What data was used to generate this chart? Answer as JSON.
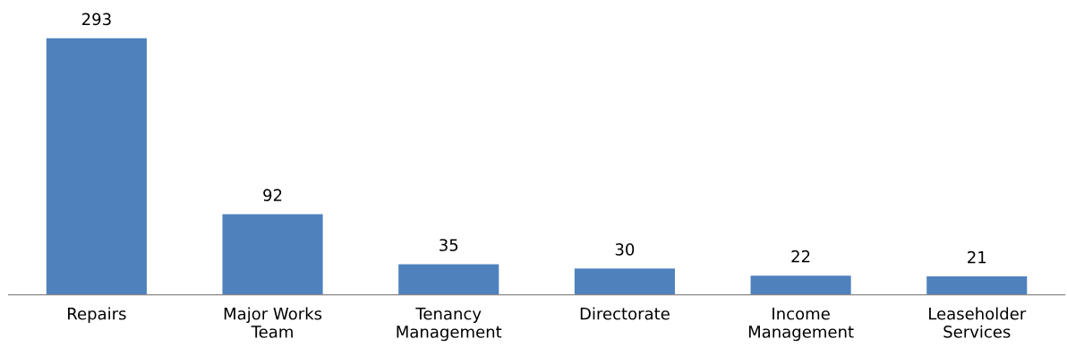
{
  "chart_data": {
    "type": "bar",
    "categories": [
      "Repairs",
      "Major Works\nTeam",
      "Tenancy\nManagement",
      "Directorate",
      "Income\nManagement",
      "Leaseholder\nServices"
    ],
    "values": [
      293,
      92,
      35,
      30,
      22,
      21
    ],
    "color": "#4f81bd",
    "data_labels": true,
    "grid": false,
    "legend": false
  }
}
